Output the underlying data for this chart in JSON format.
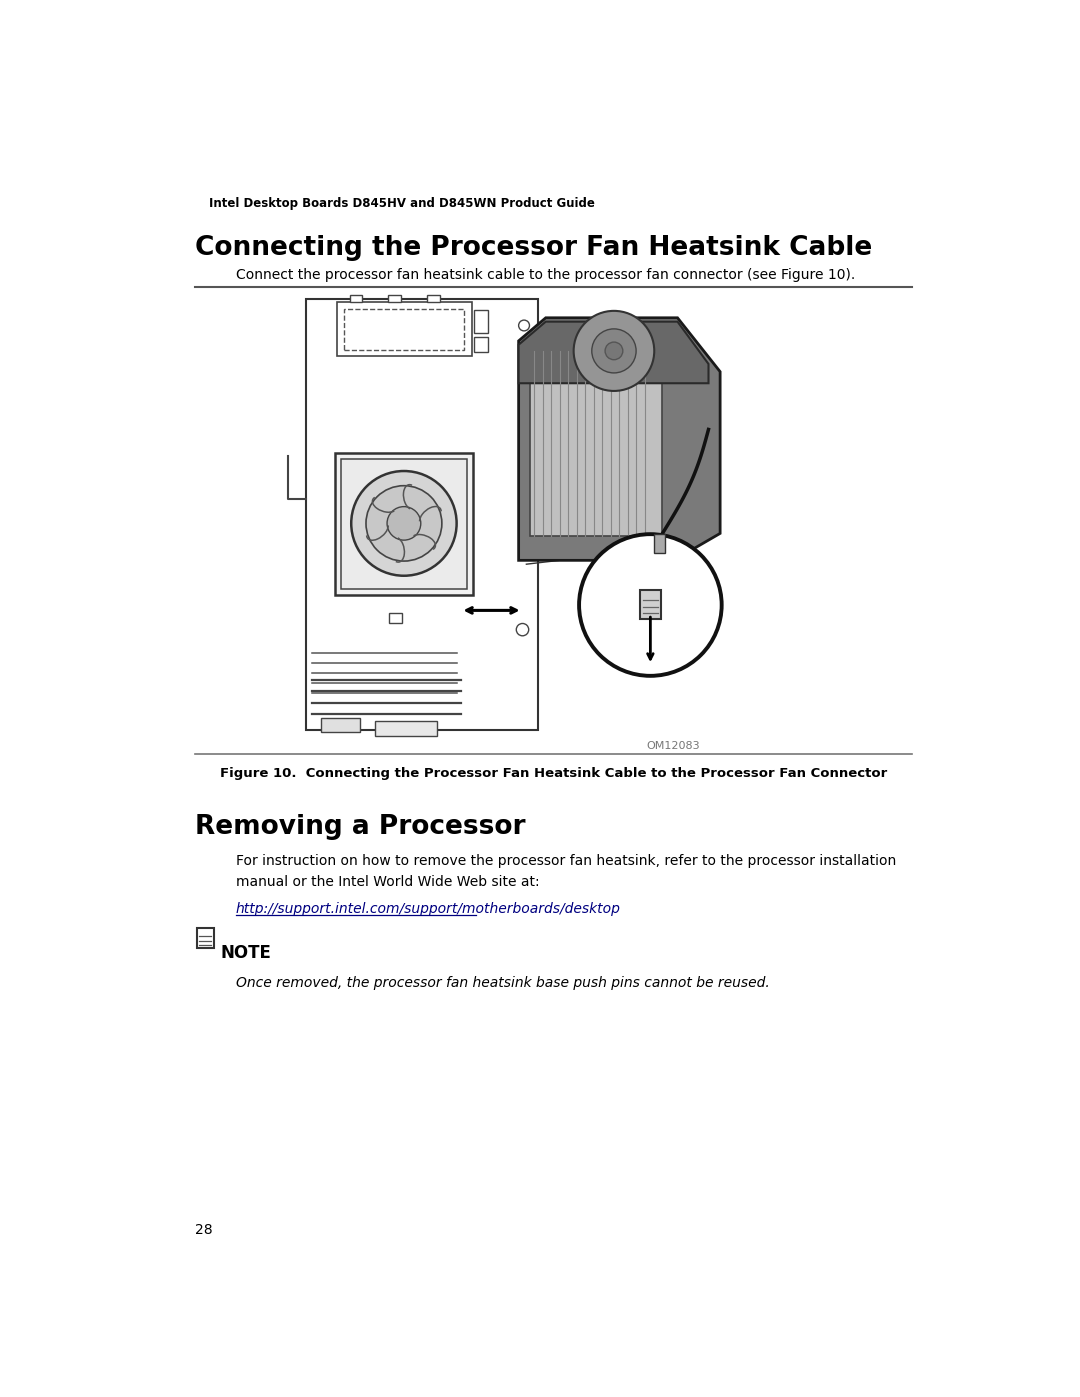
{
  "header_text": "Intel Desktop Boards D845HV and D845WN Product Guide",
  "section1_title": "Connecting the Processor Fan Heatsink Cable",
  "section1_body": "Connect the processor fan heatsink cable to the processor fan connector (see Figure 10).",
  "figure_caption": "Figure 10.  Connecting the Processor Fan Heatsink Cable to the Processor Fan Connector",
  "figure_id": "OM12083",
  "section2_title": "Removing a Processor",
  "section2_body1": "For instruction on how to remove the processor fan heatsink, refer to the processor installation\nmanual or the Intel World Wide Web site at:",
  "section2_url": "http://support.intel.com/support/motherboards/desktop",
  "note_label": "NOTE",
  "note_body": "Once removed, the processor fan heatsink base push pins cannot be reused.",
  "page_number": "28",
  "bg_color": "#ffffff",
  "text_color": "#000000",
  "url_color": "#000080"
}
